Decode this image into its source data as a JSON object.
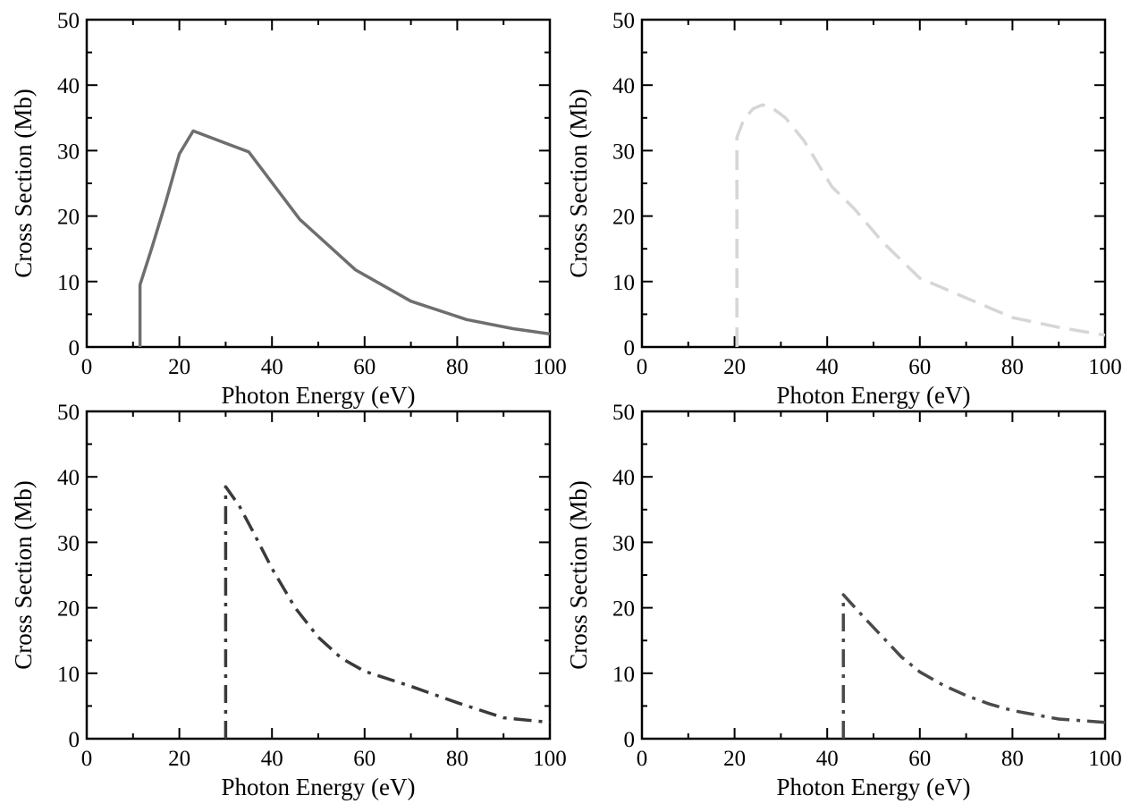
{
  "chart_data": [
    {
      "type": "line",
      "xlabel": "Photon Energy (eV)",
      "ylabel": "Cross Section (Mb)",
      "xlim": [
        0,
        100
      ],
      "ylim": [
        0,
        50
      ],
      "xticks": [
        "0",
        "20",
        "40",
        "60",
        "80",
        "100"
      ],
      "yticks": [
        "0",
        "10",
        "20",
        "30",
        "40",
        "50"
      ],
      "grid": false,
      "line_style": "solid",
      "color": "#6e6e6e",
      "series": [
        {
          "x": [
            11.5,
            11.5,
            14,
            17,
            20,
            23,
            35,
            46,
            58,
            70,
            82,
            92,
            100
          ],
          "y": [
            0,
            9.5,
            15,
            22,
            29.5,
            33,
            29.8,
            19.5,
            11.8,
            7,
            4.2,
            2.8,
            2
          ]
        }
      ]
    },
    {
      "type": "line",
      "xlabel": "Photon Energy (eV)",
      "ylabel": "Cross Section (Mb)",
      "xlim": [
        0,
        100
      ],
      "ylim": [
        0,
        50
      ],
      "xticks": [
        "0",
        "20",
        "40",
        "60",
        "80",
        "100"
      ],
      "yticks": [
        "0",
        "10",
        "20",
        "30",
        "40",
        "50"
      ],
      "grid": false,
      "line_style": "dashed",
      "color": "#d6d6d6",
      "series": [
        {
          "x": [
            20.5,
            20.5,
            22,
            24,
            26,
            28,
            31,
            35,
            41,
            46,
            52,
            60,
            70,
            80,
            90,
            100
          ],
          "y": [
            0,
            32,
            34.8,
            36.4,
            37,
            36.6,
            35,
            31.5,
            24.5,
            21,
            16,
            10.5,
            7.5,
            4.5,
            3,
            1.8
          ]
        }
      ]
    },
    {
      "type": "line",
      "xlabel": "Photon Energy (eV)",
      "ylabel": "Cross Section (Mb)",
      "xlim": [
        0,
        100
      ],
      "ylim": [
        0,
        50
      ],
      "xticks": [
        "0",
        "20",
        "40",
        "60",
        "80",
        "100"
      ],
      "yticks": [
        "0",
        "10",
        "20",
        "30",
        "40",
        "50"
      ],
      "grid": false,
      "line_style": "dash-dot",
      "color": "#3a3a3a",
      "series": [
        {
          "x": [
            30,
            30,
            33,
            36,
            40,
            45,
            50,
            55,
            60,
            70,
            80,
            90,
            100
          ],
          "y": [
            0,
            38.5,
            35.5,
            31.5,
            26,
            20,
            15.5,
            12.3,
            10.3,
            8,
            5.5,
            3.2,
            2.5
          ]
        }
      ]
    },
    {
      "type": "line",
      "xlabel": "Photon Energy (eV)",
      "ylabel": "Cross Section (Mb)",
      "xlim": [
        0,
        100
      ],
      "ylim": [
        0,
        50
      ],
      "xticks": [
        "0",
        "20",
        "40",
        "60",
        "80",
        "100"
      ],
      "yticks": [
        "0",
        "10",
        "20",
        "30",
        "40",
        "50"
      ],
      "grid": false,
      "line_style": "dash-dot",
      "color": "#4a4a4a",
      "series": [
        {
          "x": [
            43.5,
            43.5,
            45,
            48,
            52,
            56,
            60,
            65,
            70,
            75,
            80,
            90,
            100
          ],
          "y": [
            0,
            22,
            20.8,
            18.5,
            15.5,
            12.5,
            10.2,
            8.2,
            6.6,
            5.3,
            4.3,
            3,
            2.5
          ]
        }
      ]
    }
  ]
}
